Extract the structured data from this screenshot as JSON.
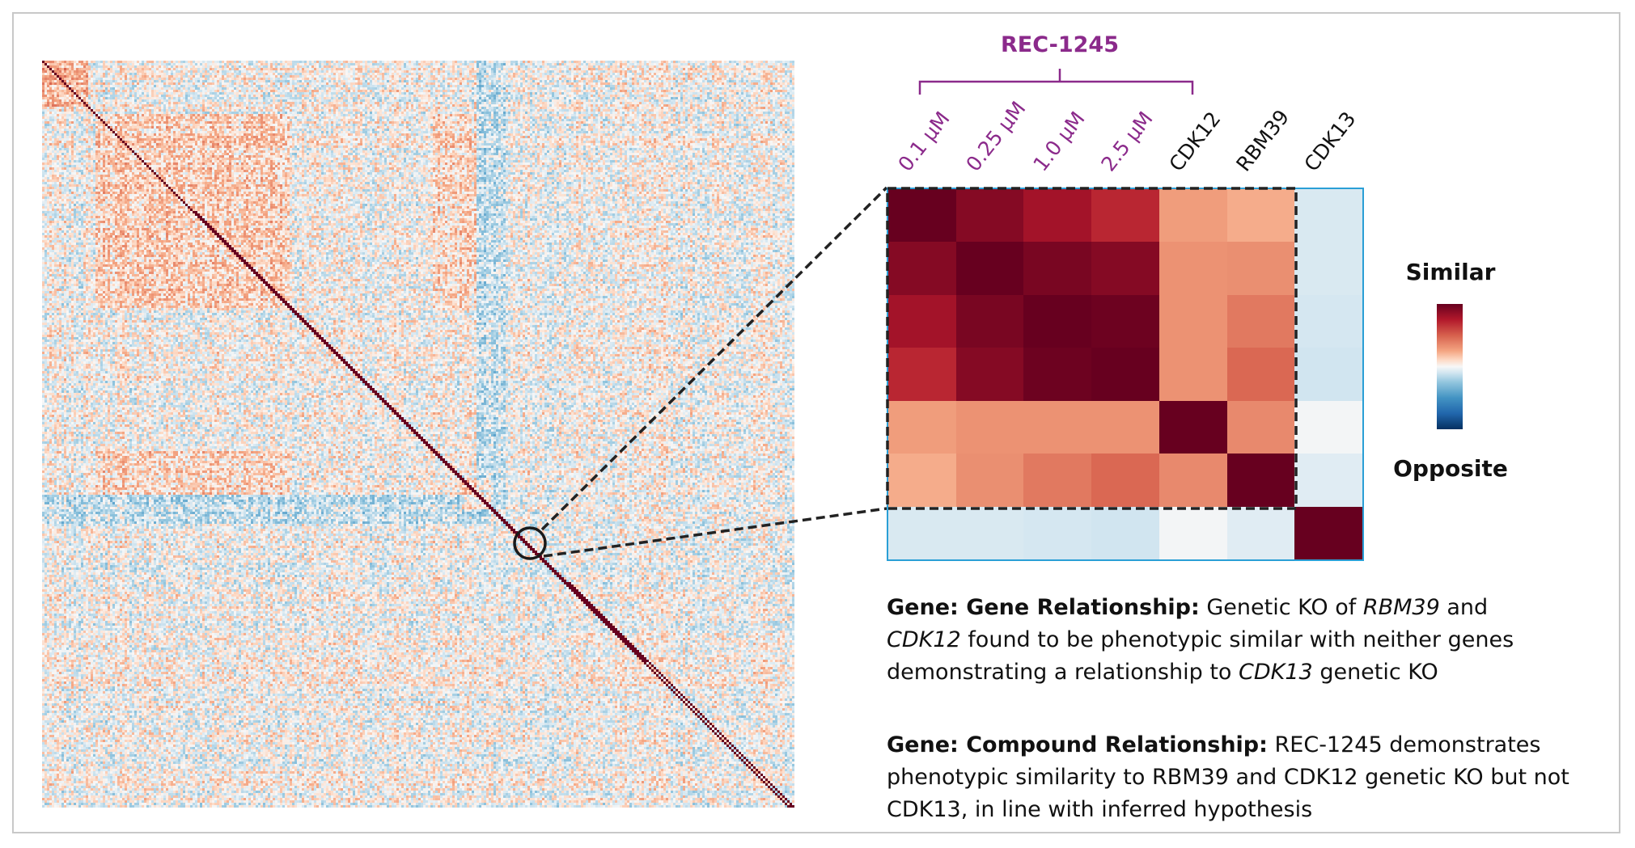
{
  "chart_data": [
    {
      "type": "heatmap",
      "description_scope": "genome-wide similarity matrix (unlabeled)",
      "colormap": "RdBu_r",
      "value_range": [
        -1,
        1
      ],
      "highlight": "circled block on diagonal"
    },
    {
      "type": "heatmap",
      "group_label": "REC-1245",
      "group_color": "#8b2a8b",
      "labels": [
        "0.1 µM",
        "0.25 µM",
        "1.0 µM",
        "2.5 µM",
        "CDK12",
        "RBM39",
        "CDK13"
      ],
      "label_colors": [
        "#8b2a8b",
        "#8b2a8b",
        "#8b2a8b",
        "#8b2a8b",
        "#111111",
        "#111111",
        "#111111"
      ],
      "values": [
        [
          1.0,
          0.9,
          0.8,
          0.7,
          0.28,
          0.23,
          -0.08
        ],
        [
          0.9,
          1.0,
          0.94,
          0.9,
          0.32,
          0.33,
          -0.08
        ],
        [
          0.8,
          0.94,
          1.0,
          0.98,
          0.32,
          0.41,
          -0.09
        ],
        [
          0.7,
          0.9,
          0.98,
          1.0,
          0.32,
          0.47,
          -0.1
        ],
        [
          0.28,
          0.32,
          0.32,
          0.32,
          1.0,
          0.35,
          -0.01
        ],
        [
          0.23,
          0.33,
          0.41,
          0.47,
          0.35,
          1.0,
          -0.06
        ],
        [
          -0.08,
          -0.08,
          -0.09,
          -0.1,
          -0.01,
          -0.06,
          1.0
        ]
      ],
      "colormap": "RdBu_r",
      "value_range": [
        -1,
        1
      ],
      "legend": {
        "top_label": "Similar",
        "bottom_label": "Opposite"
      },
      "frame_color": "#2a9fd6"
    }
  ],
  "text": {
    "gene_gene": {
      "heading": "Gene: Gene Relationship:",
      "parts": [
        " Genetic KO of ",
        "RBM39",
        " and ",
        "CDK12",
        " found to be phenotypic similar with neither genes demonstrating a relationship to ",
        "CDK13",
        " genetic KO"
      ]
    },
    "gene_compound": {
      "heading": "Gene: Compound Relationship:",
      "body": " REC-1245 demonstrates phenotypic similarity to RBM39 and CDK12 genetic KO but not CDK13, in line with inferred hypothesis"
    }
  }
}
